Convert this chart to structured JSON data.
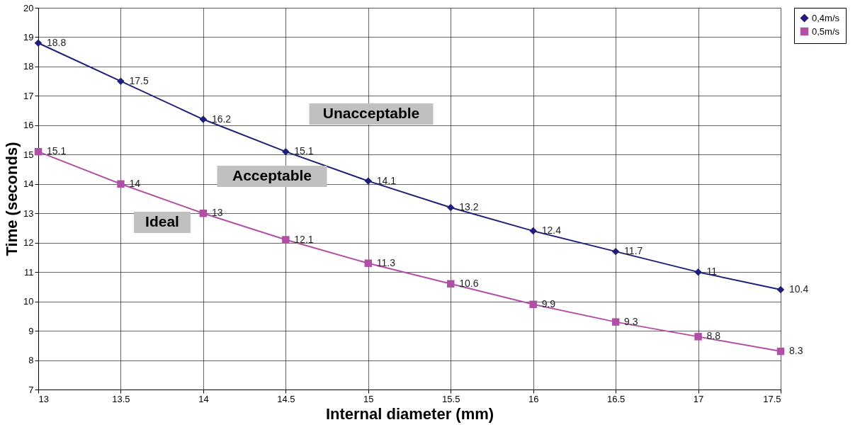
{
  "chart_data": {
    "type": "line",
    "xlabel": "Internal diameter (mm)",
    "ylabel": "Time (seconds)",
    "x": [
      13,
      13.5,
      14,
      14.5,
      15,
      15.5,
      16,
      16.5,
      17,
      17.5
    ],
    "series": [
      {
        "name": "0,4m/s",
        "color": "#1f1f78",
        "marker": "diamond",
        "values": [
          18.8,
          17.5,
          16.2,
          15.1,
          14.1,
          13.2,
          12.4,
          11.7,
          11,
          10.4
        ]
      },
      {
        "name": "0,5m/s",
        "color": "#b04fa6",
        "marker": "square",
        "values": [
          15.1,
          14,
          13,
          12.1,
          11.3,
          10.6,
          9.9,
          9.3,
          8.8,
          8.3
        ]
      }
    ],
    "xlim": [
      13,
      17.5
    ],
    "xticks": [
      13,
      13.5,
      14,
      14.5,
      15,
      15.5,
      16,
      16.5,
      17,
      17.5
    ],
    "ylim": [
      7,
      20
    ],
    "yticks": [
      7,
      8,
      9,
      10,
      11,
      12,
      13,
      14,
      15,
      16,
      17,
      18,
      19,
      20
    ],
    "annotations": [
      "Unacceptable",
      "Acceptable",
      "Ideal"
    ],
    "data_labels": true,
    "grid": true,
    "legend": "right",
    "line_style": "solid"
  }
}
